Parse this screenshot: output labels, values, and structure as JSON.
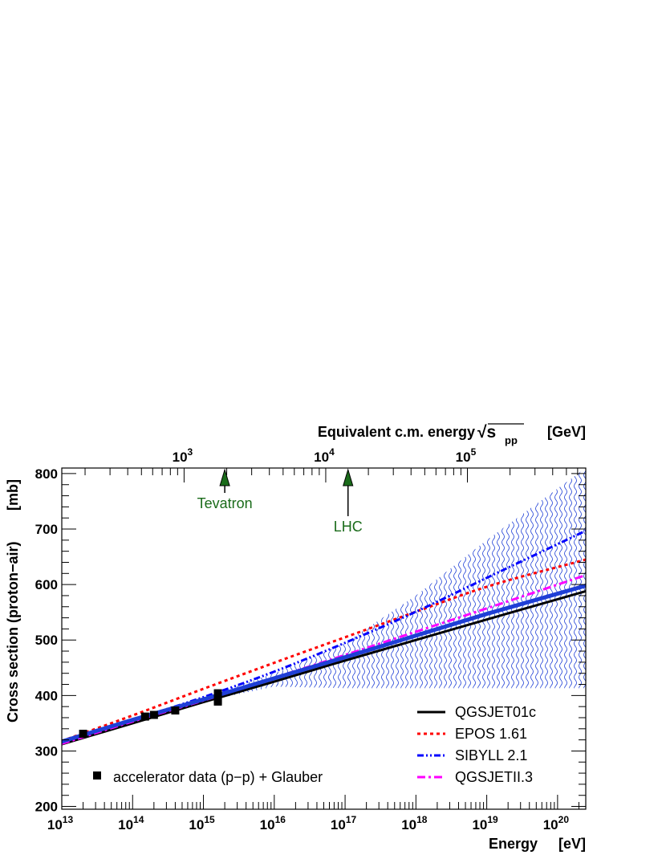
{
  "chart_data": {
    "type": "line",
    "xlabel": "Energy",
    "xunit": "[eV]",
    "ylabel": "Cross section (proton−air)",
    "yunit": "[mb]",
    "top_axis_label": "Equivalent c.m. energy",
    "top_axis_symbol": "√s",
    "top_axis_subscript": "pp",
    "top_axis_unit": "[GeV]",
    "xscale": "log",
    "xlim": [
      10000000000000.0,
      2.5e+20
    ],
    "ylim": [
      195,
      810
    ],
    "x_ticks": [
      {
        "value": 10000000000000.0,
        "base": "10",
        "exp": "13"
      },
      {
        "value": 100000000000000.0,
        "base": "10",
        "exp": "14"
      },
      {
        "value": 1000000000000000.0,
        "base": "10",
        "exp": "15"
      },
      {
        "value": 1e+16,
        "base": "10",
        "exp": "16"
      },
      {
        "value": 1e+17,
        "base": "10",
        "exp": "17"
      },
      {
        "value": 1e+18,
        "base": "10",
        "exp": "18"
      },
      {
        "value": 1e+19,
        "base": "10",
        "exp": "19"
      },
      {
        "value": 1e+20,
        "base": "10",
        "exp": "20"
      }
    ],
    "y_ticks": [
      200,
      300,
      400,
      500,
      600,
      700,
      800
    ],
    "top_ticks": [
      {
        "value": 1000,
        "base": "10",
        "exp": "3"
      },
      {
        "value": 10000,
        "base": "10",
        "exp": "4"
      },
      {
        "value": 100000,
        "base": "10",
        "exp": "5"
      }
    ],
    "series": [
      {
        "name": "QGSJET01c",
        "color": "#000000",
        "dash": "solid",
        "x": [
          10000000000000.0,
          100000000000000.0,
          1000000000000000.0,
          1e+16,
          1e+17,
          1e+18,
          1e+19,
          2.5e+20
        ],
        "y": [
          312,
          350,
          388,
          425,
          463,
          500,
          537,
          588
        ]
      },
      {
        "name": "EPOS 1.61",
        "color": "#ff0000",
        "dash": "dot",
        "x": [
          10000000000000.0,
          100000000000000.0,
          1000000000000000.0,
          1e+16,
          1e+17,
          1e+18,
          1e+19,
          2.5e+20
        ],
        "y": [
          318,
          364,
          412,
          459,
          505,
          551,
          596,
          645
        ]
      },
      {
        "name": "SIBYLL 2.1",
        "color": "#0000ff",
        "dash": "dashdotdot",
        "x": [
          10000000000000.0,
          100000000000000.0,
          1000000000000000.0,
          1e+16,
          1e+17,
          1e+18,
          1e+19,
          2.5e+20
        ],
        "y": [
          316,
          356,
          397,
          443,
          495,
          551,
          612,
          697
        ]
      },
      {
        "name": "QGSJETII.3",
        "color": "#ff00ff",
        "dash": "dashdot",
        "x": [
          10000000000000.0,
          100000000000000.0,
          1000000000000000.0,
          1e+16,
          1e+17,
          1e+18,
          1e+19,
          2.5e+20
        ],
        "y": [
          313,
          353,
          391,
          432,
          473,
          515,
          557,
          617
        ]
      }
    ],
    "fit_band": {
      "color": "#1f3fd6",
      "x": [
        10000000000000.0,
        100000000000000.0,
        1000000000000000.0,
        1e+16,
        1e+17,
        1e+18,
        1e+19,
        2.5e+20
      ],
      "y": [
        317,
        356,
        393,
        431,
        469,
        508,
        547,
        598
      ],
      "upper": [
        317,
        356,
        397,
        440,
        495,
        580,
        680,
        810
      ],
      "lower": [
        317,
        356,
        389,
        416,
        413,
        413,
        413,
        413
      ]
    },
    "data_points": {
      "name": "accelerator data (p−p) + Glauber",
      "x": [
        20000000000000.0,
        150000000000000.0,
        200000000000000.0,
        400000000000000.0,
        1600000000000000.0,
        1600000000000000.0,
        1600000000000000.0
      ],
      "y": [
        331,
        362,
        365,
        373,
        389,
        392,
        404
      ],
      "err": [
        5,
        5,
        5,
        5,
        5,
        5,
        6
      ]
    },
    "annotations": [
      {
        "label": "Tevatron",
        "x_energy": 2000000000000000.0,
        "color": "#1a6b1a"
      },
      {
        "label": "LHC",
        "x_energy": 1.1e+17,
        "color": "#1a6b1a"
      }
    ]
  }
}
